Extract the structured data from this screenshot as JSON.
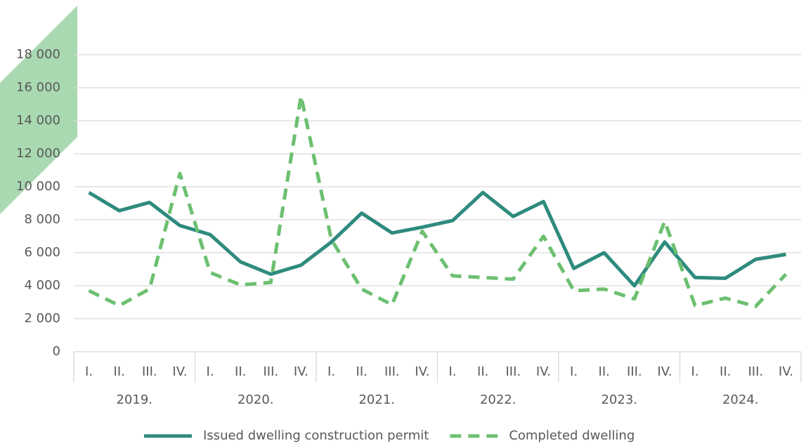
{
  "chart_data": {
    "type": "line",
    "categories": [
      "I.",
      "II.",
      "III.",
      "IV.",
      "I.",
      "II.",
      "III.",
      "IV.",
      "I.",
      "II.",
      "III.",
      "IV.",
      "I.",
      "II.",
      "III.",
      "IV.",
      "I.",
      "II.",
      "III.",
      "IV.",
      "I.",
      "II.",
      "III.",
      "IV."
    ],
    "x_groups": [
      "2019.",
      "2020.",
      "2021.",
      "2022.",
      "2023.",
      "2024."
    ],
    "series": [
      {
        "name": "Issued dwelling construction permit",
        "color": "#2e8b7d",
        "dash": false,
        "values": [
          9650,
          8550,
          9050,
          7650,
          7100,
          5450,
          4700,
          5250,
          6650,
          8400,
          7200,
          7550,
          7950,
          9650,
          8200,
          9100,
          5050,
          6000,
          4000,
          6650,
          4500,
          4450,
          5600,
          5900
        ]
      },
      {
        "name": "Completed dwelling",
        "color": "#6cc070",
        "dash": true,
        "values": [
          3700,
          2800,
          3800,
          10800,
          4800,
          4050,
          4200,
          15500,
          6800,
          3800,
          2850,
          7300,
          4600,
          4500,
          4400,
          7000,
          3700,
          3800,
          3200,
          7900,
          2800,
          3250,
          2750,
          4700
        ]
      }
    ],
    "ylim": [
      0,
      18000
    ],
    "yticks": [
      0,
      {
        "value": 2000,
        "label": "2 000"
      },
      {
        "value": 4000,
        "label": "4 000"
      },
      {
        "value": 6000,
        "label": "6 000"
      },
      {
        "value": 8000,
        "label": "8 000"
      },
      {
        "value": 10000,
        "label": "10 000"
      },
      {
        "value": 12000,
        "label": "12 000"
      },
      {
        "value": 14000,
        "label": "14 000"
      },
      {
        "value": 16000,
        "label": "16 000"
      },
      {
        "value": 18000,
        "label": "18 000"
      }
    ],
    "grid": true,
    "legend": "bottom"
  }
}
